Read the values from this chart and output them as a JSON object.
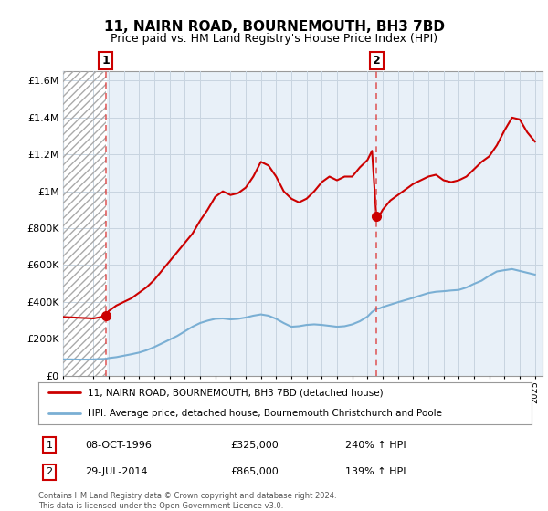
{
  "title": "11, NAIRN ROAD, BOURNEMOUTH, BH3 7BD",
  "subtitle": "Price paid vs. HM Land Registry's House Price Index (HPI)",
  "hpi_label": "HPI: Average price, detached house, Bournemouth Christchurch and Poole",
  "property_label": "11, NAIRN ROAD, BOURNEMOUTH, BH3 7BD (detached house)",
  "footnote": "Contains HM Land Registry data © Crown copyright and database right 2024.\nThis data is licensed under the Open Government Licence v3.0.",
  "transaction1": {
    "num": 1,
    "date": "08-OCT-1996",
    "price": "£325,000",
    "hpi": "240% ↑ HPI",
    "year": 1996.8
  },
  "transaction2": {
    "num": 2,
    "date": "29-JUL-2014",
    "price": "£865,000",
    "hpi": "139% ↑ HPI",
    "year": 2014.58
  },
  "ylim": [
    0,
    1650000
  ],
  "yticks": [
    0,
    200000,
    400000,
    600000,
    800000,
    1000000,
    1200000,
    1400000,
    1600000
  ],
  "ytick_labels": [
    "£0",
    "£200K",
    "£400K",
    "£600K",
    "£800K",
    "£1M",
    "£1.2M",
    "£1.4M",
    "£1.6M"
  ],
  "property_color": "#cc0000",
  "hpi_color": "#7aafd4",
  "chart_bg": "#e8f0f8",
  "grid_color": "#c8d4e0",
  "property_line": [
    [
      1994.0,
      318000
    ],
    [
      1994.5,
      316000
    ],
    [
      1995.0,
      314000
    ],
    [
      1995.5,
      312000
    ],
    [
      1996.0,
      310000
    ],
    [
      1996.5,
      318000
    ],
    [
      1996.8,
      325000
    ],
    [
      1997.0,
      350000
    ],
    [
      1997.5,
      380000
    ],
    [
      1998.0,
      400000
    ],
    [
      1998.5,
      420000
    ],
    [
      1999.0,
      450000
    ],
    [
      1999.5,
      480000
    ],
    [
      2000.0,
      520000
    ],
    [
      2000.5,
      570000
    ],
    [
      2001.0,
      620000
    ],
    [
      2001.5,
      670000
    ],
    [
      2002.0,
      720000
    ],
    [
      2002.5,
      770000
    ],
    [
      2003.0,
      840000
    ],
    [
      2003.5,
      900000
    ],
    [
      2004.0,
      970000
    ],
    [
      2004.5,
      1000000
    ],
    [
      2005.0,
      980000
    ],
    [
      2005.5,
      990000
    ],
    [
      2006.0,
      1020000
    ],
    [
      2006.5,
      1080000
    ],
    [
      2007.0,
      1160000
    ],
    [
      2007.5,
      1140000
    ],
    [
      2008.0,
      1080000
    ],
    [
      2008.5,
      1000000
    ],
    [
      2009.0,
      960000
    ],
    [
      2009.5,
      940000
    ],
    [
      2010.0,
      960000
    ],
    [
      2010.5,
      1000000
    ],
    [
      2011.0,
      1050000
    ],
    [
      2011.5,
      1080000
    ],
    [
      2012.0,
      1060000
    ],
    [
      2012.5,
      1080000
    ],
    [
      2013.0,
      1080000
    ],
    [
      2013.5,
      1130000
    ],
    [
      2014.0,
      1170000
    ],
    [
      2014.3,
      1220000
    ],
    [
      2014.58,
      865000
    ],
    [
      2014.8,
      870000
    ],
    [
      2015.0,
      900000
    ],
    [
      2015.5,
      950000
    ],
    [
      2016.0,
      980000
    ],
    [
      2016.5,
      1010000
    ],
    [
      2017.0,
      1040000
    ],
    [
      2017.5,
      1060000
    ],
    [
      2018.0,
      1080000
    ],
    [
      2018.5,
      1090000
    ],
    [
      2019.0,
      1060000
    ],
    [
      2019.5,
      1050000
    ],
    [
      2020.0,
      1060000
    ],
    [
      2020.5,
      1080000
    ],
    [
      2021.0,
      1120000
    ],
    [
      2021.5,
      1160000
    ],
    [
      2022.0,
      1190000
    ],
    [
      2022.5,
      1250000
    ],
    [
      2023.0,
      1330000
    ],
    [
      2023.5,
      1400000
    ],
    [
      2024.0,
      1390000
    ],
    [
      2024.5,
      1320000
    ],
    [
      2025.0,
      1270000
    ]
  ],
  "hpi_line": [
    [
      1994.0,
      88000
    ],
    [
      1994.5,
      88000
    ],
    [
      1995.0,
      87000
    ],
    [
      1995.5,
      87000
    ],
    [
      1996.0,
      88000
    ],
    [
      1996.5,
      90000
    ],
    [
      1996.8,
      91000
    ],
    [
      1997.0,
      95000
    ],
    [
      1997.5,
      100000
    ],
    [
      1998.0,
      108000
    ],
    [
      1998.5,
      116000
    ],
    [
      1999.0,
      125000
    ],
    [
      1999.5,
      138000
    ],
    [
      2000.0,
      155000
    ],
    [
      2000.5,
      175000
    ],
    [
      2001.0,
      195000
    ],
    [
      2001.5,
      215000
    ],
    [
      2002.0,
      240000
    ],
    [
      2002.5,
      265000
    ],
    [
      2003.0,
      285000
    ],
    [
      2003.5,
      298000
    ],
    [
      2004.0,
      308000
    ],
    [
      2004.5,
      310000
    ],
    [
      2005.0,
      305000
    ],
    [
      2005.5,
      308000
    ],
    [
      2006.0,
      315000
    ],
    [
      2006.5,
      325000
    ],
    [
      2007.0,
      332000
    ],
    [
      2007.5,
      325000
    ],
    [
      2008.0,
      308000
    ],
    [
      2008.5,
      285000
    ],
    [
      2009.0,
      265000
    ],
    [
      2009.5,
      268000
    ],
    [
      2010.0,
      275000
    ],
    [
      2010.5,
      278000
    ],
    [
      2011.0,
      275000
    ],
    [
      2011.5,
      270000
    ],
    [
      2012.0,
      265000
    ],
    [
      2012.5,
      268000
    ],
    [
      2013.0,
      278000
    ],
    [
      2013.5,
      295000
    ],
    [
      2014.0,
      320000
    ],
    [
      2014.3,
      345000
    ],
    [
      2014.58,
      362000
    ],
    [
      2014.8,
      365000
    ],
    [
      2015.0,
      372000
    ],
    [
      2015.5,
      385000
    ],
    [
      2016.0,
      398000
    ],
    [
      2016.5,
      410000
    ],
    [
      2017.0,
      422000
    ],
    [
      2017.5,
      435000
    ],
    [
      2018.0,
      448000
    ],
    [
      2018.5,
      455000
    ],
    [
      2019.0,
      458000
    ],
    [
      2019.5,
      462000
    ],
    [
      2020.0,
      465000
    ],
    [
      2020.5,
      478000
    ],
    [
      2021.0,
      498000
    ],
    [
      2021.5,
      515000
    ],
    [
      2022.0,
      542000
    ],
    [
      2022.5,
      565000
    ],
    [
      2023.0,
      572000
    ],
    [
      2023.5,
      578000
    ],
    [
      2024.0,
      568000
    ],
    [
      2024.5,
      558000
    ],
    [
      2025.0,
      548000
    ]
  ],
  "xmin": 1994.0,
  "xmax": 2025.5,
  "hatch_end": 1996.8,
  "t1_price": 325000,
  "t2_price": 865000
}
